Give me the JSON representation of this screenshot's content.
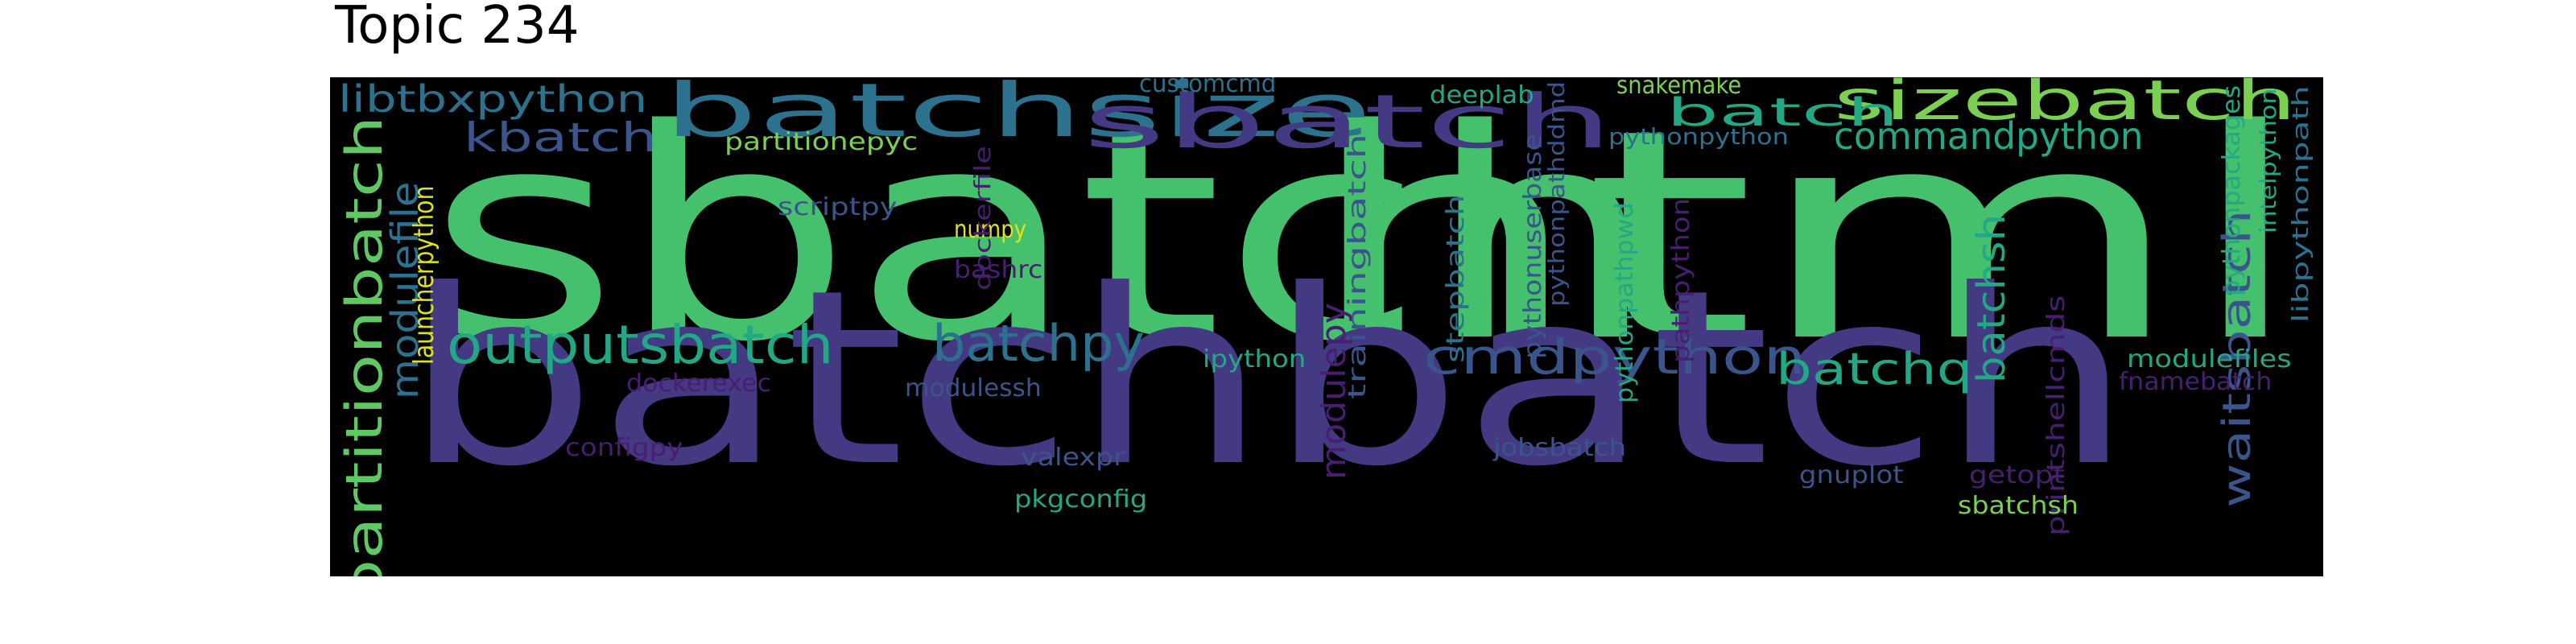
{
  "title": "Topic 234",
  "colors": {
    "background": "#000000",
    "green": "#45c06d",
    "indigo": "#443983",
    "teal": "#2c728e",
    "seafoam": "#22a884",
    "lime": "#7ad151",
    "yellow": "#dde318",
    "purple": "#481f70",
    "blue": "#3a548c",
    "lightgreen": "#5ec962"
  },
  "words": [
    {
      "text": "sbatch",
      "color": "green"
    },
    {
      "text": "html",
      "color": "green"
    },
    {
      "text": "batchbatch",
      "color": "indigo"
    },
    {
      "text": "batchsize",
      "color": "teal"
    },
    {
      "text": "sbatch",
      "color": "indigo"
    },
    {
      "text": "sizebatch",
      "color": "lime"
    },
    {
      "text": "commandpython",
      "color": "seafoam"
    },
    {
      "text": "batch",
      "color": "seafoam"
    },
    {
      "text": "outputsbatch",
      "color": "seafoam"
    },
    {
      "text": "batchpy",
      "color": "teal"
    },
    {
      "text": "cmdpython",
      "color": "blue"
    },
    {
      "text": "batchq",
      "color": "seafoam"
    },
    {
      "text": "partitionbatch",
      "color": "lightgreen"
    },
    {
      "text": "libtbxpython",
      "color": "teal"
    },
    {
      "text": "kbatch",
      "color": "blue"
    },
    {
      "text": "modulefile",
      "color": "teal"
    },
    {
      "text": "launcherpython",
      "color": "yellow"
    },
    {
      "text": "waitsbatch",
      "color": "blue"
    },
    {
      "text": "batchsh",
      "color": "seafoam"
    },
    {
      "text": "modulepy",
      "color": "purple"
    },
    {
      "text": "customcmd",
      "color": "teal"
    },
    {
      "text": "deeplab",
      "color": "seafoam"
    },
    {
      "text": "snakemake",
      "color": "lime"
    },
    {
      "text": "pythonpython",
      "color": "teal"
    },
    {
      "text": "partitionepyc",
      "color": "lime"
    },
    {
      "text": "scriptpy",
      "color": "blue"
    },
    {
      "text": "numpy",
      "color": "yellow"
    },
    {
      "text": "bashrc",
      "color": "purple"
    },
    {
      "text": "dockerfile",
      "color": "purple"
    },
    {
      "text": "trainingbatch",
      "color": "blue"
    },
    {
      "text": "stepbatch",
      "color": "teal"
    },
    {
      "text": "pythonuserbase",
      "color": "blue"
    },
    {
      "text": "pythonpathddmd",
      "color": "blue"
    },
    {
      "text": "pythonpathpwd",
      "color": "seafoam"
    },
    {
      "text": "pathpython",
      "color": "purple"
    },
    {
      "text": "printshellcmds",
      "color": "purple"
    },
    {
      "text": "pythonpackages",
      "color": "seafoam"
    },
    {
      "text": "intelpython",
      "color": "seafoam"
    },
    {
      "text": "libpythonpath",
      "color": "teal"
    },
    {
      "text": "ipython",
      "color": "seafoam"
    },
    {
      "text": "dockerexec",
      "color": "purple"
    },
    {
      "text": "modulessh",
      "color": "blue"
    },
    {
      "text": "modulefiles",
      "color": "seafoam"
    },
    {
      "text": "fnamebatch",
      "color": "purple"
    },
    {
      "text": "configpy",
      "color": "purple"
    },
    {
      "text": "valexpr",
      "color": "blue"
    },
    {
      "text": "pkgconfig",
      "color": "seafoam"
    },
    {
      "text": "jobsbatch",
      "color": "blue"
    },
    {
      "text": "gnuplot",
      "color": "blue"
    },
    {
      "text": "getopt",
      "color": "purple"
    },
    {
      "text": "sbatchsh",
      "color": "lime"
    }
  ]
}
